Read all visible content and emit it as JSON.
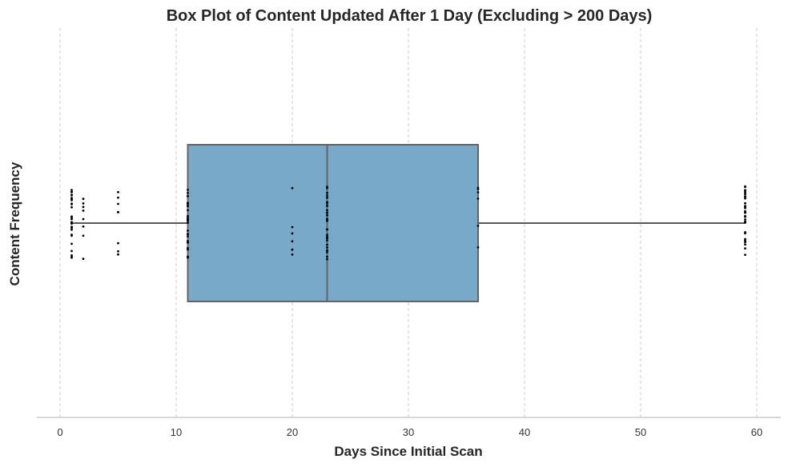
{
  "chart_data": {
    "type": "box",
    "title": "Box Plot of Content Updated After 1 Day (Excluding > 200 Days)",
    "xlabel": "Days Since Initial Scan",
    "ylabel": "Content Frequency",
    "xlim": [
      -2,
      62
    ],
    "x_ticks": [
      0,
      10,
      20,
      30,
      40,
      50,
      60
    ],
    "grid": "x-only dashed",
    "box": {
      "whisker_low": 1,
      "q1": 11,
      "median": 23,
      "q3": 36,
      "whisker_high": 59,
      "fill_color": "#78a9c9",
      "edge_color": "#646464"
    },
    "points": [
      {
        "x": 1,
        "count": 30
      },
      {
        "x": 2,
        "count": 8
      },
      {
        "x": 5,
        "count": 8
      },
      {
        "x": 11,
        "count": 30
      },
      {
        "x": 20,
        "count": 6
      },
      {
        "x": 23,
        "count": 30
      },
      {
        "x": 36,
        "count": 6
      },
      {
        "x": 59,
        "count": 30
      }
    ],
    "point_color": "#000000"
  }
}
